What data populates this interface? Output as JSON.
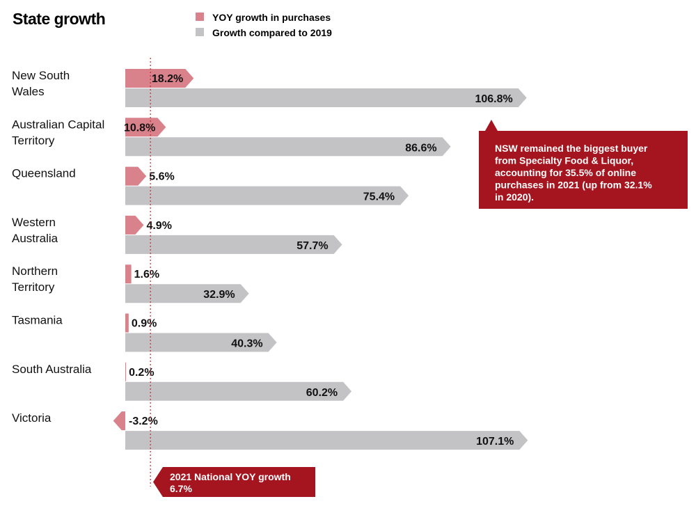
{
  "colors": {
    "yoy": "#d9828c",
    "growth2019": "#c3c3c6",
    "callout": "#a5151f",
    "national_line": "#c0242f"
  },
  "chart_data": {
    "type": "bar",
    "orientation": "horizontal",
    "title": "State growth",
    "legend_placement": "top",
    "grid": false,
    "categories": [
      [
        "New South",
        "Wales"
      ],
      [
        "Australian Capital",
        "Territory"
      ],
      [
        "Queensland"
      ],
      [
        "Western",
        "Australia"
      ],
      [
        "Northern",
        "Territory"
      ],
      [
        "Tasmania"
      ],
      [
        "South Australia"
      ],
      [
        "Victoria"
      ]
    ],
    "series": [
      {
        "name": "YOY growth in purchases",
        "values": [
          18.2,
          10.8,
          5.6,
          4.9,
          1.6,
          0.9,
          0.2,
          -3.2
        ],
        "labels": [
          "18.2%",
          "10.8%",
          "5.6%",
          "4.9%",
          "1.6%",
          "0.9%",
          "0.2%",
          "-3.2%"
        ]
      },
      {
        "name": "Growth compared to 2019",
        "values": [
          106.8,
          86.6,
          75.4,
          57.7,
          32.9,
          40.3,
          60.2,
          107.1
        ],
        "labels": [
          "106.8%",
          "86.6%",
          "75.4%",
          "57.7%",
          "32.9%",
          "40.3%",
          "60.2%",
          "107.1%"
        ]
      }
    ],
    "reference_line": {
      "value": 6.7,
      "label_lines": [
        "2021 National YOY growth",
        "6.7%"
      ]
    },
    "annotation": {
      "lines": [
        "NSW remained the biggest buyer",
        "from Specialty Food & Liquor,",
        "accounting for 35.5% of online",
        "purchases in 2021 (up from 32.1%",
        "in 2020)."
      ]
    }
  }
}
